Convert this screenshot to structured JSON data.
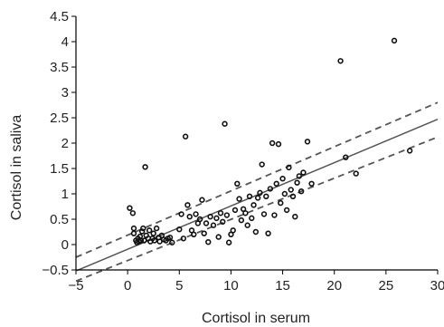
{
  "chart_data": {
    "type": "scatter",
    "title": "",
    "xlabel": "Cortisol in serum",
    "ylabel": "Cortisol in saliva",
    "xlim": [
      -5,
      30
    ],
    "ylim": [
      -0.5,
      4.5
    ],
    "xticks": [
      -5,
      0,
      5,
      10,
      15,
      20,
      25,
      30
    ],
    "yticks": [
      -0.5,
      0,
      0.5,
      1,
      1.5,
      2,
      2.5,
      3,
      3.5,
      4,
      4.5
    ],
    "xtick_labels": [
      "−5",
      "0",
      "5",
      "10",
      "15",
      "20",
      "25",
      "30"
    ],
    "ytick_labels": [
      "−0.5",
      "0",
      "0.5",
      "1",
      "1.5",
      "2",
      "2.5",
      "3",
      "3.5",
      "4",
      "4.5"
    ],
    "grid": false,
    "series": [
      {
        "kind": "points",
        "marker": "open-circle",
        "points": [
          [
            0.2,
            0.72
          ],
          [
            0.5,
            0.62
          ],
          [
            0.6,
            0.32
          ],
          [
            0.6,
            0.22
          ],
          [
            0.8,
            0.08
          ],
          [
            0.9,
            0.04
          ],
          [
            1.0,
            0.12
          ],
          [
            1.1,
            0.06
          ],
          [
            1.2,
            0.16
          ],
          [
            1.3,
            0.08
          ],
          [
            1.4,
            0.26
          ],
          [
            1.5,
            0.32
          ],
          [
            1.6,
            0.08
          ],
          [
            1.7,
            1.53
          ],
          [
            1.8,
            0.18
          ],
          [
            2.0,
            0.12
          ],
          [
            2.1,
            0.28
          ],
          [
            2.2,
            0.06
          ],
          [
            2.4,
            0.12
          ],
          [
            2.5,
            0.22
          ],
          [
            2.6,
            0.08
          ],
          [
            2.8,
            0.32
          ],
          [
            3.0,
            0.14
          ],
          [
            3.1,
            0.06
          ],
          [
            3.3,
            0.18
          ],
          [
            3.5,
            0.1
          ],
          [
            3.7,
            0.08
          ],
          [
            3.9,
            0.12
          ],
          [
            4.1,
            0.14
          ],
          [
            4.3,
            0.04
          ],
          [
            5.0,
            0.3
          ],
          [
            5.2,
            0.6
          ],
          [
            5.4,
            0.12
          ],
          [
            5.6,
            2.13
          ],
          [
            5.8,
            0.78
          ],
          [
            6.0,
            0.55
          ],
          [
            6.2,
            0.28
          ],
          [
            6.4,
            0.2
          ],
          [
            6.6,
            0.6
          ],
          [
            6.8,
            0.42
          ],
          [
            7.0,
            0.5
          ],
          [
            7.2,
            0.88
          ],
          [
            7.4,
            0.22
          ],
          [
            7.6,
            0.42
          ],
          [
            7.8,
            0.05
          ],
          [
            8.0,
            0.55
          ],
          [
            8.3,
            0.38
          ],
          [
            8.6,
            0.52
          ],
          [
            8.8,
            0.15
          ],
          [
            9.0,
            0.62
          ],
          [
            9.2,
            0.45
          ],
          [
            9.4,
            2.38
          ],
          [
            9.6,
            0.58
          ],
          [
            9.8,
            0.04
          ],
          [
            10.0,
            0.2
          ],
          [
            10.2,
            0.28
          ],
          [
            10.4,
            0.68
          ],
          [
            10.6,
            1.2
          ],
          [
            10.8,
            0.9
          ],
          [
            11.0,
            0.48
          ],
          [
            11.2,
            0.7
          ],
          [
            11.4,
            0.62
          ],
          [
            11.6,
            0.38
          ],
          [
            11.8,
            0.95
          ],
          [
            12.0,
            0.52
          ],
          [
            12.2,
            0.78
          ],
          [
            12.4,
            0.25
          ],
          [
            12.6,
            0.92
          ],
          [
            12.8,
            1.02
          ],
          [
            13.0,
            1.58
          ],
          [
            13.2,
            0.6
          ],
          [
            13.4,
            0.95
          ],
          [
            13.6,
            0.22
          ],
          [
            13.8,
            1.1
          ],
          [
            14.0,
            2.0
          ],
          [
            14.2,
            0.58
          ],
          [
            14.4,
            1.2
          ],
          [
            14.6,
            1.98
          ],
          [
            14.8,
            0.82
          ],
          [
            15.0,
            1.3
          ],
          [
            15.2,
            1.0
          ],
          [
            15.4,
            0.68
          ],
          [
            15.6,
            1.52
          ],
          [
            15.8,
            1.08
          ],
          [
            16.0,
            0.95
          ],
          [
            16.2,
            0.55
          ],
          [
            16.4,
            1.22
          ],
          [
            16.6,
            1.35
          ],
          [
            16.8,
            1.05
          ],
          [
            17.0,
            1.42
          ],
          [
            17.4,
            2.03
          ],
          [
            17.8,
            1.2
          ],
          [
            20.6,
            3.62
          ],
          [
            21.1,
            1.72
          ],
          [
            22.1,
            1.4
          ],
          [
            25.8,
            4.02
          ],
          [
            27.3,
            1.85
          ]
        ]
      },
      {
        "kind": "regression",
        "style": "solid",
        "from": [
          -5,
          -0.52
        ],
        "to": [
          30,
          2.47
        ]
      },
      {
        "kind": "confidence-upper",
        "style": "dashed",
        "from": [
          -5,
          -0.25
        ],
        "to": [
          30,
          2.8
        ]
      },
      {
        "kind": "confidence-lower",
        "style": "dashed",
        "from": [
          -5,
          -0.72
        ],
        "to": [
          30,
          2.12
        ]
      }
    ],
    "colors": {
      "points": "#111111",
      "lines": "#555555",
      "axes": "#000000"
    }
  }
}
